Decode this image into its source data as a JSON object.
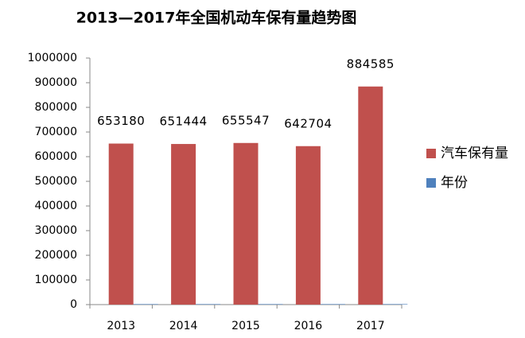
{
  "chart_data": {
    "type": "bar",
    "title": "2013—2017年全国机动车保有量趋势图",
    "categories": [
      "2013",
      "2014",
      "2015",
      "2016",
      "2017"
    ],
    "series": [
      {
        "name": "汽车保有量",
        "color": "#c0504d",
        "values": [
          653180,
          651444,
          655547,
          642704,
          884585
        ]
      },
      {
        "name": "年份",
        "color": "#4f81bd",
        "values": [
          2013,
          2014,
          2015,
          2016,
          2017
        ]
      }
    ],
    "data_labels_series": 0,
    "ylim": [
      0,
      1000000
    ],
    "yticks": [
      0,
      100000,
      200000,
      300000,
      400000,
      500000,
      600000,
      700000,
      800000,
      900000,
      1000000
    ],
    "grid": false,
    "legend": "right"
  }
}
